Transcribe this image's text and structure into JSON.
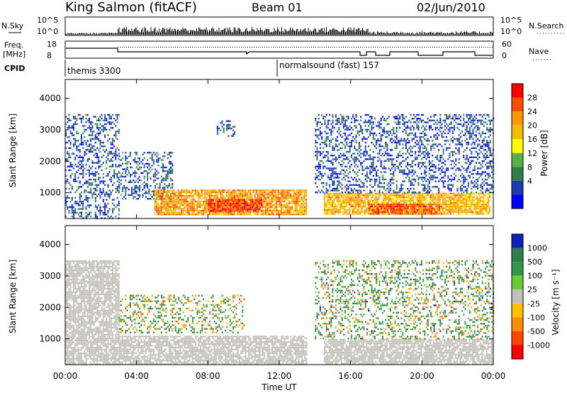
{
  "header": {
    "station": "King Salmon (fitACF)",
    "beam": "Beam 01",
    "date": "02/Jun/2010"
  },
  "top_panels": {
    "nsky_label": "N.Sky",
    "nsky_ticks": [
      "10^5",
      "10^0"
    ],
    "nsearch_label": "N.Search",
    "nsearch_ticks": [
      "10^5",
      "10^0"
    ],
    "freq_label": "Freq.",
    "freq_unit": "[MHz]",
    "freq_ticks": [
      "18",
      "8"
    ],
    "nave_label": "Nave",
    "nave_ticks": [
      "60",
      "0"
    ],
    "cpid_label": "CPID",
    "cpid_entries": [
      {
        "label": "themis 3300",
        "start_hour": 0
      },
      {
        "label": "normalsound (fast) 157",
        "start_hour": 12
      }
    ]
  },
  "axes": {
    "x_ticks": [
      "00:00",
      "04:00",
      "08:00",
      "12:00",
      "16:00",
      "20:00",
      "00:00"
    ],
    "x_label": "Time UT",
    "y_label": "Slant Range [km]",
    "y_ticks": [
      "1000",
      "2000",
      "3000",
      "4000"
    ]
  },
  "power_colorbar": {
    "label": "Power [dB]",
    "ticks": [
      "28",
      "24",
      "20",
      "16",
      "12",
      "8",
      "4"
    ],
    "colors": [
      "#ff0000",
      "#ff4c00",
      "#ff9600",
      "#f0c000",
      "#ffff00",
      "#56b04e",
      "#2f7e49",
      "#1a3cb0",
      "#0000ff"
    ]
  },
  "velocity_colorbar": {
    "label": "Velocity [m s⁻¹]",
    "ticks": [
      "1000",
      "500",
      "100",
      "25",
      "-25",
      "-100",
      "-500",
      "-1000"
    ],
    "colors": [
      "#1020c0",
      "#2f7e49",
      "#2f9a46",
      "#66cc33",
      "#c0c0b8",
      "#ffc000",
      "#ff8c00",
      "#ff4500",
      "#ff0000"
    ]
  },
  "chart_data": [
    {
      "type": "heatmap",
      "title": "Power",
      "xlabel": "Time UT",
      "ylabel": "Slant Range [km]",
      "x_range_hours": [
        0,
        24
      ],
      "ylim": [
        180,
        4600
      ],
      "colorbar": {
        "label": "Power [dB]",
        "range": [
          0,
          30
        ]
      },
      "regions": [
        {
          "x_hours": [
            0,
            3
          ],
          "range_km": [
            200,
            3500
          ],
          "power_db": 4
        },
        {
          "x_hours": [
            3,
            6
          ],
          "range_km": [
            800,
            2300
          ],
          "power_db": 5
        },
        {
          "x_hours": [
            8.5,
            9.5
          ],
          "range_km": [
            2800,
            3300
          ],
          "power_db": 5
        },
        {
          "x_hours": [
            5,
            13.5
          ],
          "range_km": [
            300,
            1100
          ],
          "power_db": 22
        },
        {
          "x_hours": [
            8,
            11
          ],
          "range_km": [
            400,
            800
          ],
          "power_db": 28
        },
        {
          "x_hours": [
            14.5,
            23.8
          ],
          "range_km": [
            300,
            1000
          ],
          "power_db": 20
        },
        {
          "x_hours": [
            17,
            21
          ],
          "range_km": [
            350,
            650
          ],
          "power_db": 26
        },
        {
          "x_hours": [
            14,
            24
          ],
          "range_km": [
            1000,
            3500
          ],
          "power_db": 4
        }
      ]
    },
    {
      "type": "heatmap",
      "title": "Velocity",
      "xlabel": "Time UT",
      "ylabel": "Slant Range [km]",
      "x_range_hours": [
        0,
        24
      ],
      "ylim": [
        180,
        4600
      ],
      "colorbar": {
        "label": "Velocity [m s⁻¹]",
        "range": [
          -1000,
          1000
        ]
      },
      "regions": [
        {
          "x_hours": [
            0,
            3
          ],
          "range_km": [
            200,
            3500
          ],
          "velocity": 0
        },
        {
          "x_hours": [
            3,
            13.5
          ],
          "range_km": [
            200,
            1100
          ],
          "velocity": 0
        },
        {
          "x_hours": [
            3,
            10
          ],
          "range_km": [
            1200,
            2400
          ],
          "velocity": 200
        },
        {
          "x_hours": [
            14.5,
            24
          ],
          "range_km": [
            200,
            1000
          ],
          "velocity": 0
        },
        {
          "x_hours": [
            14,
            24
          ],
          "range_km": [
            1000,
            3500
          ],
          "velocity": 300
        }
      ]
    }
  ]
}
